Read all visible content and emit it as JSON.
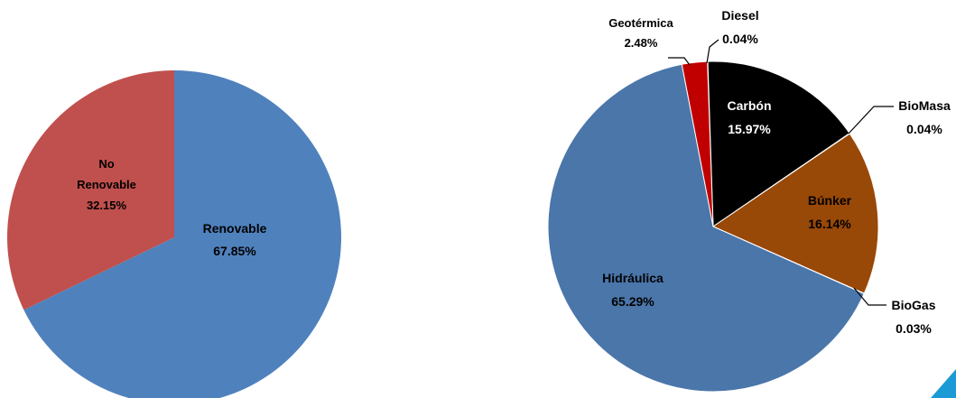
{
  "colors": {
    "renovable": "#4F81BD",
    "no_renovable": "#C0504D",
    "hidraulica": "#4A76AA",
    "geotermica": "#C00000",
    "diesel": "#FFFFFF",
    "carbon": "#000000",
    "biomasa": "#FFFFFF",
    "bunker": "#984807",
    "biogas": "#FFFFFF",
    "accent_corner": "#1B9AD6"
  },
  "chart_data": [
    {
      "type": "pie",
      "title": "",
      "slices": [
        {
          "name": "Renovable",
          "value": 67.85,
          "label": "Renovable",
          "value_label": "67.85%"
        },
        {
          "name": "No Renovable",
          "value": 32.15,
          "label_lines": [
            "No",
            "Renovable"
          ],
          "value_label": "32.15%"
        }
      ]
    },
    {
      "type": "pie",
      "title": "",
      "slices": [
        {
          "name": "Diesel",
          "value": 0.04,
          "label": "Diesel",
          "value_label": "0.04%"
        },
        {
          "name": "Carbón",
          "value": 15.97,
          "label": "Carbón",
          "value_label": "15.97%"
        },
        {
          "name": "BioMasa",
          "value": 0.04,
          "label": "BioMasa",
          "value_label": "0.04%"
        },
        {
          "name": "Búnker",
          "value": 16.14,
          "label": "Búnker",
          "value_label": "16.14%"
        },
        {
          "name": "BioGas",
          "value": 0.03,
          "label": "BioGas",
          "value_label": "0.03%"
        },
        {
          "name": "Hidráulica",
          "value": 65.29,
          "label": "Hidráulica",
          "value_label": "65.29%"
        },
        {
          "name": "Geotérmica",
          "value": 2.48,
          "label": "Geotérmica",
          "value_label": "2.48%"
        }
      ]
    }
  ]
}
